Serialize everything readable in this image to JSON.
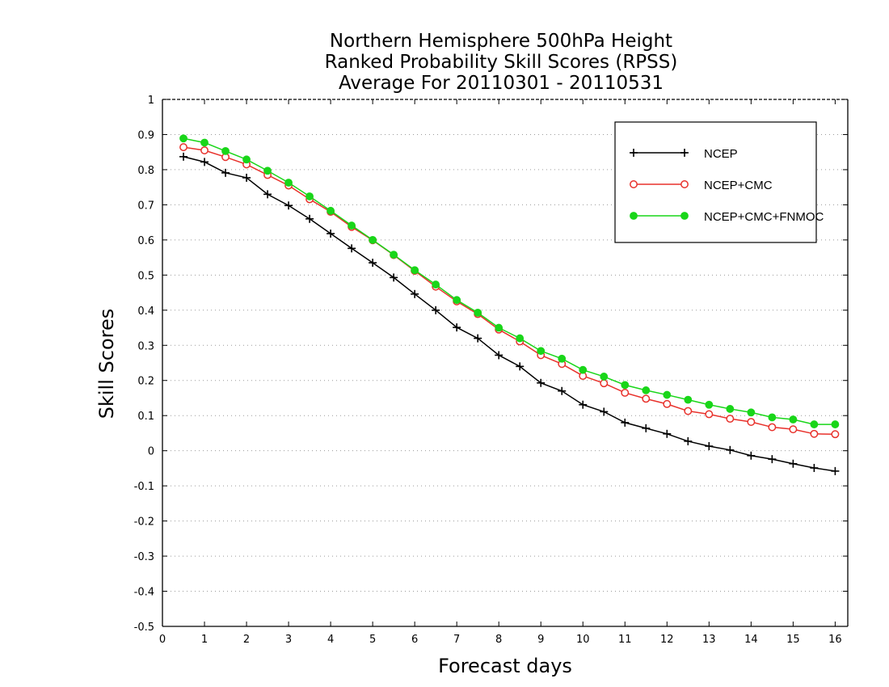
{
  "chart_data": {
    "type": "line",
    "title_lines": [
      "Northern Hemisphere 500hPa Height",
      "Ranked Probability Skill Scores (RPSS)",
      "Average For 20110301 - 20110531"
    ],
    "xlabel": "Forecast days",
    "ylabel": "Skill Scores",
    "xlim": [
      0,
      16.3
    ],
    "ylim": [
      -0.5,
      1
    ],
    "x_ticks": [
      0,
      1,
      2,
      3,
      4,
      5,
      6,
      7,
      8,
      9,
      10,
      11,
      12,
      13,
      14,
      15,
      16
    ],
    "y_ticks": [
      -0.5,
      -0.4,
      -0.3,
      -0.2,
      -0.1,
      0,
      0.1,
      0.2,
      0.3,
      0.4,
      0.5,
      0.6,
      0.7,
      0.8,
      0.9,
      1
    ],
    "y_tick_labels": [
      "-0.5",
      "-0.4",
      "-0.3",
      "-0.2",
      "-0.1",
      "0",
      "0.1",
      "0.2",
      "0.3",
      "0.4",
      "0.5",
      "0.6",
      "0.7",
      "0.8",
      "0.9",
      "1"
    ],
    "grid": "horizontal-dotted",
    "legend_position": "top-right",
    "x": [
      0.5,
      1,
      1.5,
      2,
      2.5,
      3,
      3.5,
      4,
      4.5,
      5,
      5.5,
      6,
      6.5,
      7,
      7.5,
      8,
      8.5,
      9,
      9.5,
      10,
      10.5,
      11,
      11.5,
      12,
      12.5,
      13,
      13.5,
      14,
      14.5,
      15,
      15.5,
      16
    ],
    "series": [
      {
        "name": "NCEP",
        "color": "#000000",
        "marker": "plus",
        "values": [
          0.837,
          0.822,
          0.791,
          0.777,
          0.73,
          0.698,
          0.66,
          0.618,
          0.576,
          0.535,
          0.493,
          0.446,
          0.4,
          0.351,
          0.32,
          0.272,
          0.24,
          0.193,
          0.17,
          0.131,
          0.111,
          0.08,
          0.064,
          0.048,
          0.027,
          0.013,
          0.002,
          -0.014,
          -0.024,
          -0.037,
          -0.049,
          -0.058
        ]
      },
      {
        "name": "NCEP+CMC",
        "color": "#e8312b",
        "marker": "open-circle",
        "values": [
          0.864,
          0.855,
          0.836,
          0.815,
          0.785,
          0.755,
          0.716,
          0.68,
          0.637,
          0.599,
          0.557,
          0.512,
          0.467,
          0.425,
          0.389,
          0.345,
          0.311,
          0.272,
          0.247,
          0.213,
          0.192,
          0.165,
          0.148,
          0.133,
          0.113,
          0.104,
          0.091,
          0.082,
          0.067,
          0.061,
          0.048,
          0.047
        ]
      },
      {
        "name": "NCEP+CMC+FNMOC",
        "color": "#19d619",
        "marker": "filled-circle",
        "values": [
          0.889,
          0.877,
          0.853,
          0.829,
          0.797,
          0.763,
          0.724,
          0.683,
          0.641,
          0.6,
          0.558,
          0.514,
          0.473,
          0.429,
          0.393,
          0.35,
          0.32,
          0.284,
          0.262,
          0.23,
          0.211,
          0.187,
          0.172,
          0.159,
          0.145,
          0.131,
          0.119,
          0.109,
          0.095,
          0.089,
          0.075,
          0.075
        ]
      }
    ]
  }
}
